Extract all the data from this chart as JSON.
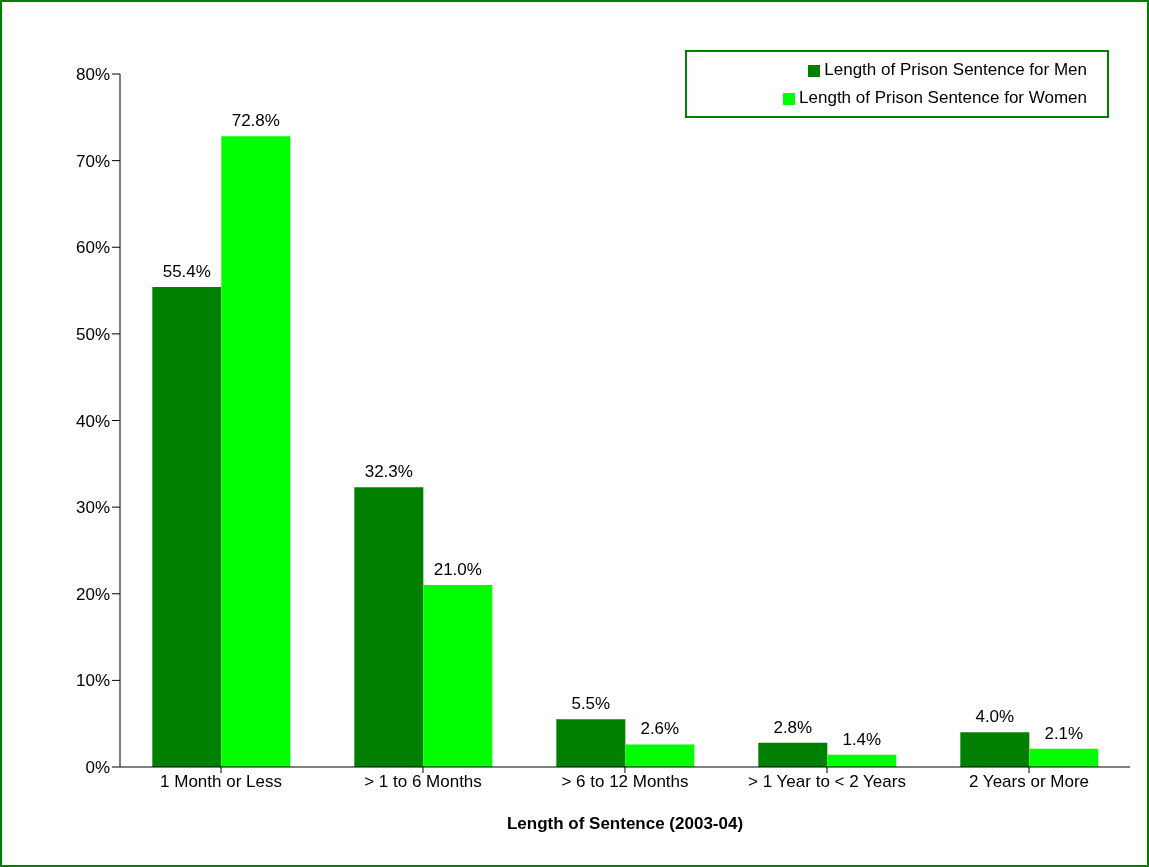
{
  "chart_data": {
    "type": "bar",
    "xlabel": "Length of Sentence (2003-04)",
    "categories": [
      "1 Month or Less",
      "> 1 to 6 Months",
      "> 6 to 12 Months",
      "> 1 Year to < 2 Years",
      "2 Years or More"
    ],
    "series": [
      {
        "name": "Length of Prison Sentence for Men",
        "color": "#008000",
        "values": [
          55.4,
          32.3,
          5.5,
          2.8,
          4.0
        ],
        "value_labels": [
          "55.4%",
          "32.3%",
          "5.5%",
          "2.8%",
          "4.0%"
        ]
      },
      {
        "name": "Length of Prison Sentence for Women",
        "color": "#00ff00",
        "values": [
          72.8,
          21.0,
          2.6,
          1.4,
          2.1
        ],
        "value_labels": [
          "72.8%",
          "21.0%",
          "2.6%",
          "1.4%",
          "2.1%"
        ]
      }
    ],
    "ylim": [
      0,
      80
    ],
    "yticks": [
      {
        "value": 0,
        "label": "0%"
      },
      {
        "value": 10,
        "label": "10%"
      },
      {
        "value": 20,
        "label": "20%"
      },
      {
        "value": 30,
        "label": "30%"
      },
      {
        "value": 40,
        "label": "40%"
      },
      {
        "value": 50,
        "label": "50%"
      },
      {
        "value": 60,
        "label": "60%"
      },
      {
        "value": 70,
        "label": "70%"
      },
      {
        "value": 80,
        "label": "80%"
      }
    ],
    "grid": false,
    "legend": "top right"
  }
}
